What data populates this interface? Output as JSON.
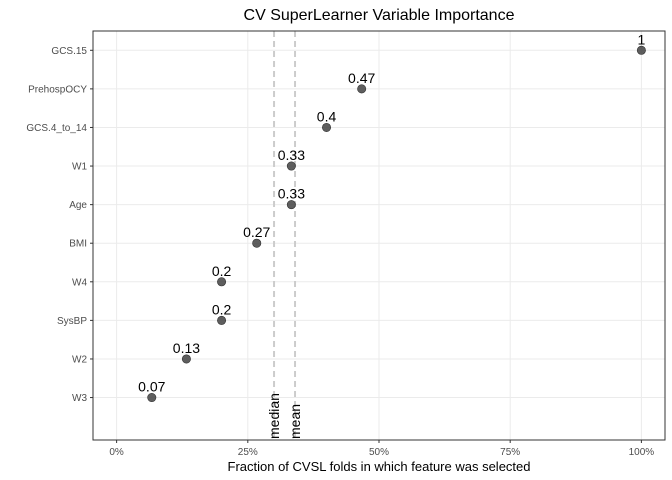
{
  "chart_data": {
    "type": "scatter",
    "title": "CV SuperLearner Variable Importance",
    "xlabel": "Fraction of CVSL folds in which feature was selected",
    "ylabel": "",
    "xlim": [
      0,
      1
    ],
    "x_ticks": [
      0,
      0.25,
      0.5,
      0.75,
      1
    ],
    "x_tick_labels": [
      "0%",
      "25%",
      "50%",
      "75%",
      "100%"
    ],
    "grid": true,
    "points": [
      {
        "category": "GCS.15",
        "value": 1.0,
        "label": "1"
      },
      {
        "category": "PrehospOCY",
        "value": 0.467,
        "label": "0.47"
      },
      {
        "category": "GCS.4_to_14",
        "value": 0.4,
        "label": "0.4"
      },
      {
        "category": "W1",
        "value": 0.333,
        "label": "0.33"
      },
      {
        "category": "Age",
        "value": 0.333,
        "label": "0.33"
      },
      {
        "category": "BMI",
        "value": 0.267,
        "label": "0.27"
      },
      {
        "category": "W4",
        "value": 0.2,
        "label": "0.2"
      },
      {
        "category": "SysBP",
        "value": 0.2,
        "label": "0.2"
      },
      {
        "category": "W2",
        "value": 0.133,
        "label": "0.13"
      },
      {
        "category": "W3",
        "value": 0.067,
        "label": "0.07"
      }
    ],
    "reference_lines": [
      {
        "name": "median",
        "value": 0.3
      },
      {
        "name": "mean",
        "value": 0.34
      }
    ],
    "colors": {
      "point": "#4d4d4d",
      "reference_line": "#cccccc",
      "grid": "#ebebeb",
      "panel_border": "#333333"
    }
  }
}
